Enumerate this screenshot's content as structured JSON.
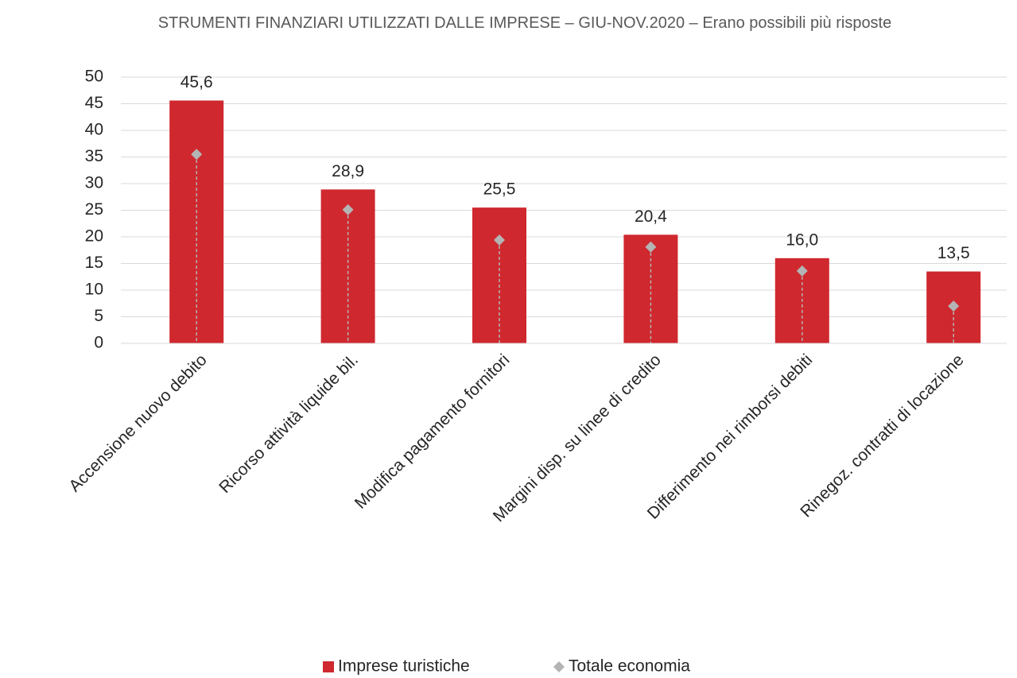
{
  "chart_data": {
    "type": "bar",
    "title": "STRUMENTI FINANZIARI UTILIZZATI DALLE IMPRESE – GIU-NOV.2020 – Erano possibili più risposte",
    "categories": [
      "Accensione nuovo debito",
      "Ricorso attività liquide bil.",
      "Modifica pagamento fornitori",
      "Margini disp. su linee di credito",
      "Differimento nei rimborsi debiti",
      "Rinegoz. contratti di locazione"
    ],
    "series": [
      {
        "name": "Imprese turistiche",
        "color": "#cf282e",
        "values": [
          45.6,
          28.9,
          25.5,
          20.4,
          16.0,
          13.5
        ],
        "value_labels": [
          "45,6",
          "28,9",
          "25,5",
          "20,4",
          "16,0",
          "13,5"
        ]
      },
      {
        "name": "Totale economia",
        "color": "#b4b4b4",
        "values": [
          35.5,
          25.1,
          19.4,
          18.1,
          13.6,
          7.0
        ]
      }
    ],
    "ylim": [
      0,
      50
    ],
    "yticks": [
      0,
      5,
      10,
      15,
      20,
      25,
      30,
      35,
      40,
      45,
      50
    ],
    "grid": true,
    "legend": "bottom"
  }
}
